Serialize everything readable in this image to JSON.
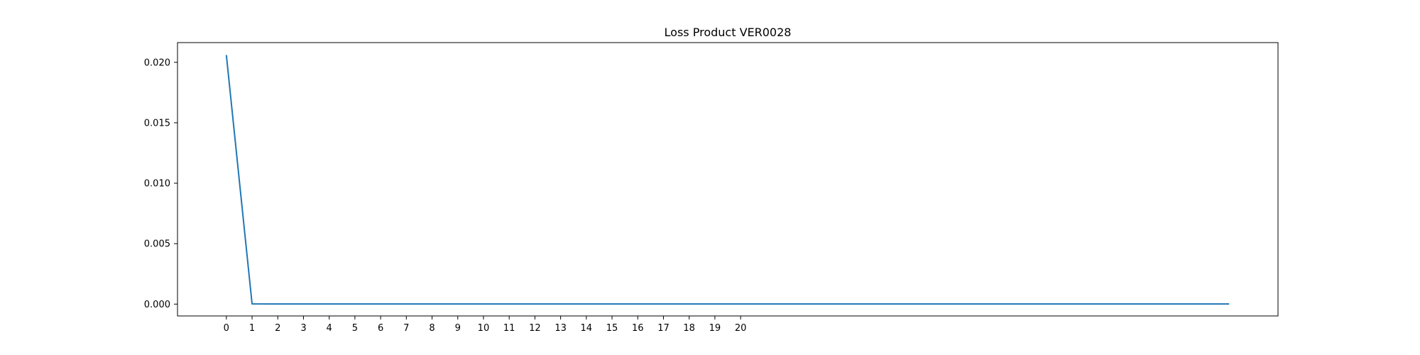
{
  "chart_data": {
    "type": "line",
    "title": "Loss Product VER0028",
    "xlabel": "",
    "ylabel": "",
    "x_ticks": [
      0,
      1,
      2,
      3,
      4,
      5,
      6,
      7,
      8,
      9,
      10,
      11,
      12,
      13,
      14,
      15,
      16,
      17,
      18,
      19,
      20
    ],
    "y_ticks": [
      0.0,
      0.005,
      0.01,
      0.015,
      0.02
    ],
    "y_tick_labels": [
      "0.000",
      "0.005",
      "0.010",
      "0.015",
      "0.020"
    ],
    "xlim": [
      -1.9,
      40.9
    ],
    "ylim": [
      -0.00098,
      0.02163
    ],
    "grid": false,
    "series": [
      {
        "color": "#1f77b4",
        "x": [
          0,
          1,
          2,
          3,
          4,
          5,
          6,
          7,
          8,
          9,
          10,
          11,
          12,
          13,
          14,
          15,
          16,
          17,
          18,
          19,
          20,
          21,
          22,
          23,
          24,
          25,
          26,
          27,
          28,
          29,
          30,
          31,
          32,
          33,
          34,
          35,
          36,
          37,
          38,
          39
        ],
        "values": [
          0.0206,
          2e-05,
          1e-05,
          1e-05,
          1e-05,
          1e-05,
          1e-05,
          1e-05,
          1e-05,
          1e-05,
          1e-05,
          1e-05,
          1e-05,
          1e-05,
          1e-05,
          1e-05,
          1e-05,
          1e-05,
          1e-05,
          1e-05,
          1e-05,
          1e-05,
          1e-05,
          1e-05,
          1e-05,
          1e-05,
          1e-05,
          1e-05,
          1e-05,
          1e-05,
          1e-05,
          1e-05,
          1e-05,
          1e-05,
          1e-05,
          1e-05,
          1e-05,
          1e-05,
          1e-05,
          1e-05
        ]
      }
    ]
  }
}
